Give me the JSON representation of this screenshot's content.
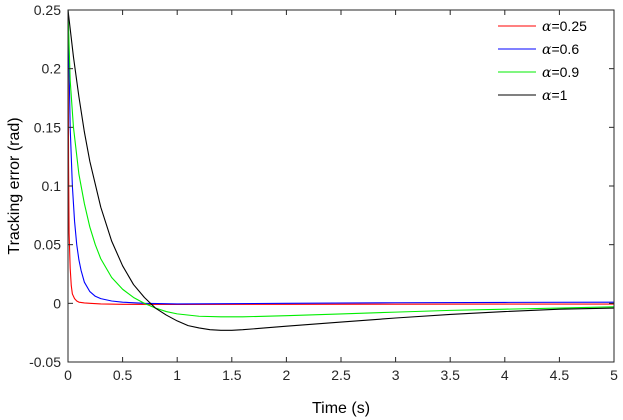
{
  "chart_data": {
    "type": "line",
    "xlabel": "Time (s)",
    "ylabel": "Tracking error (rad)",
    "xlim": [
      0,
      5
    ],
    "ylim": [
      -0.05,
      0.25
    ],
    "xticks": [
      0,
      0.5,
      1,
      1.5,
      2,
      2.5,
      3,
      3.5,
      4,
      4.5,
      5
    ],
    "xtick_labels": [
      "0",
      "0.5",
      "1",
      "1.5",
      "2",
      "2.5",
      "3",
      "3.5",
      "4",
      "4.5",
      "5"
    ],
    "yticks": [
      -0.05,
      0,
      0.05,
      0.1,
      0.15,
      0.2,
      0.25
    ],
    "ytick_labels": [
      "-0.05",
      "0",
      "0.05",
      "0.1",
      "0.15",
      "0.2",
      "0.25"
    ],
    "grid": false,
    "legend_position": "top-right",
    "series": [
      {
        "name": "α=0.25",
        "symbol": "α",
        "value_label": "=0.25",
        "color": "#ff0000",
        "x": [
          0,
          0.005,
          0.01,
          0.02,
          0.03,
          0.04,
          0.06,
          0.08,
          0.1,
          0.15,
          0.2,
          0.3,
          0.5,
          1,
          2,
          3,
          4,
          5
        ],
        "y": [
          0.25,
          0.12,
          0.06,
          0.03,
          0.015,
          0.008,
          0.004,
          0.002,
          0.001,
          0.0003,
          0,
          -0.0005,
          -0.0008,
          -0.0009,
          -0.0008,
          -0.0007,
          -0.0006,
          -0.0006
        ]
      },
      {
        "name": "α=0.6",
        "symbol": "α",
        "value_label": "=0.6",
        "color": "#0000ff",
        "x": [
          0,
          0.01,
          0.02,
          0.04,
          0.06,
          0.08,
          0.1,
          0.12,
          0.15,
          0.2,
          0.25,
          0.3,
          0.4,
          0.5,
          0.7,
          1,
          2,
          3,
          4,
          5
        ],
        "y": [
          0.25,
          0.2,
          0.15,
          0.1,
          0.07,
          0.05,
          0.037,
          0.028,
          0.018,
          0.01,
          0.006,
          0.004,
          0.002,
          0.001,
          0,
          -0.0005,
          0,
          0.0005,
          0.0008,
          0.001
        ]
      },
      {
        "name": "α=0.9",
        "symbol": "α",
        "value_label": "=0.9",
        "color": "#00ee00",
        "x": [
          0,
          0.02,
          0.05,
          0.1,
          0.15,
          0.2,
          0.25,
          0.3,
          0.4,
          0.5,
          0.6,
          0.7,
          0.8,
          0.9,
          1,
          1.2,
          1.4,
          1.6,
          2,
          2.5,
          3,
          3.5,
          4,
          4.5,
          5
        ],
        "y": [
          0.25,
          0.19,
          0.15,
          0.11,
          0.085,
          0.065,
          0.05,
          0.038,
          0.022,
          0.012,
          0.005,
          0,
          -0.004,
          -0.007,
          -0.009,
          -0.011,
          -0.0115,
          -0.0115,
          -0.0105,
          -0.009,
          -0.0075,
          -0.006,
          -0.005,
          -0.004,
          -0.003
        ]
      },
      {
        "name": "α=1",
        "symbol": "α",
        "value_label": "=1",
        "color": "#000000",
        "x": [
          0,
          0.05,
          0.1,
          0.15,
          0.2,
          0.3,
          0.4,
          0.5,
          0.6,
          0.7,
          0.8,
          0.9,
          1,
          1.1,
          1.2,
          1.3,
          1.4,
          1.5,
          1.6,
          1.8,
          2,
          2.5,
          3,
          3.5,
          4,
          4.5,
          5
        ],
        "y": [
          0.25,
          0.21,
          0.176,
          0.146,
          0.121,
          0.082,
          0.053,
          0.032,
          0.016,
          0.005,
          -0.004,
          -0.01,
          -0.015,
          -0.019,
          -0.021,
          -0.0225,
          -0.023,
          -0.023,
          -0.0225,
          -0.021,
          -0.0195,
          -0.016,
          -0.0125,
          -0.0095,
          -0.007,
          -0.005,
          -0.004
        ]
      }
    ]
  }
}
